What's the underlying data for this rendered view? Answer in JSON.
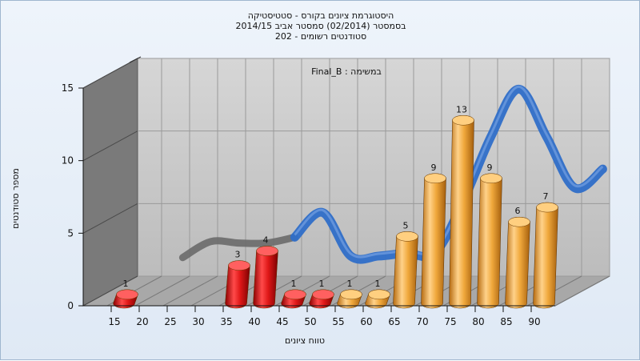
{
  "title": {
    "line1": "היסטוגרמת ציונים בקורס - סטטיסטיקה",
    "line2": "בסמסטר  (02/2014)  סמסטר אביב 2014/15",
    "line3": "סטודנטים רשומים - 202"
  },
  "chart_data": {
    "type": "bar",
    "title": "Final_B : במשימה",
    "xlabel": "טווח ציונים",
    "ylabel": "מספר סטודנטים",
    "ylim": [
      0,
      15
    ],
    "yticks": [
      0,
      5,
      10,
      15
    ],
    "xticks": [
      15,
      20,
      25,
      30,
      35,
      40,
      45,
      50,
      55,
      60,
      65,
      70,
      75,
      80,
      85,
      90
    ],
    "grid": true,
    "bars": [
      {
        "x": 15,
        "value": 1,
        "color": "red"
      },
      {
        "x": 35,
        "value": 3,
        "color": "red"
      },
      {
        "x": 40,
        "value": 4,
        "color": "red"
      },
      {
        "x": 45,
        "value": 1,
        "color": "red"
      },
      {
        "x": 50,
        "value": 1,
        "color": "red"
      },
      {
        "x": 55,
        "value": 1,
        "color": "orange"
      },
      {
        "x": 60,
        "value": 1,
        "color": "orange"
      },
      {
        "x": 65,
        "value": 5,
        "color": "orange"
      },
      {
        "x": 70,
        "value": 9,
        "color": "orange"
      },
      {
        "x": 75,
        "value": 13,
        "color": "orange"
      },
      {
        "x": 80,
        "value": 9,
        "color": "orange"
      },
      {
        "x": 85,
        "value": 6,
        "color": "orange"
      },
      {
        "x": 90,
        "value": 7,
        "color": "orange"
      }
    ],
    "curve": {
      "description": "smoothed distribution ribbon (blue for x>=40, gray below)",
      "points": [
        [
          20,
          2.2
        ],
        [
          25,
          3.3
        ],
        [
          30,
          3.2
        ],
        [
          35,
          3.2
        ],
        [
          40,
          3.6
        ],
        [
          45,
          5.3
        ],
        [
          50,
          2.3
        ],
        [
          55,
          2.3
        ],
        [
          60,
          2.5
        ],
        [
          65,
          2.5
        ],
        [
          70,
          6.0
        ],
        [
          75,
          10.5
        ],
        [
          80,
          13.8
        ],
        [
          85,
          10.5
        ],
        [
          90,
          7.0
        ],
        [
          95,
          8.3
        ]
      ]
    },
    "colors": {
      "red": "#e01818",
      "orange": "#f0a83c",
      "curve": "#2f6ec8",
      "curve_gray": "#6a6a6a",
      "back_wall": "#c8c8c8",
      "side_wall": "#7a7a7a",
      "floor": "#a8a8a8"
    }
  }
}
